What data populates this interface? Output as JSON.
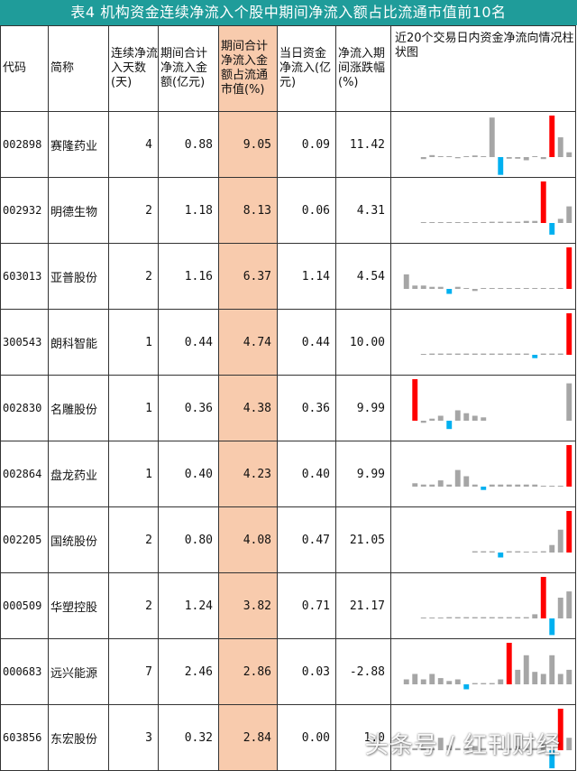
{
  "title": "表4 机构资金连续净流入个股中期间净流入额占比流通市值前10名",
  "headers": {
    "code": "代码",
    "name": "简称",
    "days": "连续净流入天数(天)",
    "amount": "期间合计净流入金额(亿元)",
    "ratio": "期间合计净流入金额占流通市值(%)",
    "today": "当日资金净流入(亿元)",
    "change": "净流入期间涨跌幅(%)",
    "chart": "近20个交易日内资金净流向情况柱状图"
  },
  "rows": [
    {
      "code": "002898",
      "name": "赛隆药业",
      "days": "4",
      "amount": "0.88",
      "ratio": "9.05",
      "today": "0.09",
      "change": "11.42",
      "bars": [
        0,
        0,
        -0.05,
        0.05,
        0,
        0,
        -0.03,
        0,
        0.04,
        0,
        1,
        -0.45,
        -0.04,
        -0.04,
        -0.08,
        0,
        -0.05,
        1.05,
        0.5,
        0.12
      ]
    },
    {
      "code": "002932",
      "name": "明德生物",
      "days": "2",
      "amount": "1.18",
      "ratio": "8.13",
      "today": "0.06",
      "change": "4.31",
      "bars": [
        0,
        0,
        0,
        0,
        0,
        0.02,
        0.02,
        0.02,
        0.02,
        0.02,
        0.03,
        0.03,
        0.03,
        0.03,
        0.05,
        0.05,
        1,
        -0.28,
        0.1,
        0.4
      ]
    },
    {
      "code": "603013",
      "name": "亚普股份",
      "days": "2",
      "amount": "1.16",
      "ratio": "6.37",
      "today": "1.14",
      "change": "4.54",
      "bars": [
        0.35,
        0.08,
        0.08,
        0.05,
        0.05,
        -0.12,
        0.05,
        0,
        -0.05,
        0,
        0.02,
        0,
        0,
        0,
        0,
        0,
        0,
        0.02,
        0,
        1
      ]
    },
    {
      "code": "300543",
      "name": "朗科智能",
      "days": "1",
      "amount": "0.44",
      "ratio": "4.74",
      "today": "0.44",
      "change": "10.00",
      "bars": [
        0,
        0,
        0,
        0.03,
        0.03,
        0.03,
        0.03,
        0.03,
        0.03,
        0.03,
        0.03,
        0.03,
        0.03,
        0.03,
        0.03,
        -0.08,
        0.03,
        0.03,
        0.03,
        1
      ]
    },
    {
      "code": "002830",
      "name": "名雕股份",
      "days": "1",
      "amount": "0.36",
      "ratio": "4.38",
      "today": "0.36",
      "change": "9.99",
      "bars": [
        0,
        1,
        -0.05,
        0.05,
        0.12,
        -0.2,
        0.25,
        0.18,
        0.12,
        0.08,
        0,
        0,
        0,
        0,
        0,
        0,
        0,
        0,
        0,
        0.9
      ]
    },
    {
      "code": "002864",
      "name": "盘龙药业",
      "days": "1",
      "amount": "0.40",
      "ratio": "4.23",
      "today": "0.40",
      "change": "9.99",
      "bars": [
        0,
        0.08,
        0.05,
        0.05,
        0.15,
        0.05,
        0.4,
        0.25,
        0.05,
        -0.08,
        0.05,
        0.05,
        0.05,
        0.05,
        0.05,
        0.05,
        0,
        0,
        0,
        1
      ]
    },
    {
      "code": "002205",
      "name": "国统股份",
      "days": "2",
      "amount": "0.80",
      "ratio": "4.08",
      "today": "0.47",
      "change": "21.05",
      "bars": [
        0,
        0,
        0,
        0,
        0,
        0,
        0,
        0,
        0.03,
        0.03,
        0.03,
        -0.12,
        0.03,
        0.03,
        0,
        0,
        0.03,
        0.18,
        0.55,
        1
      ]
    },
    {
      "code": "000509",
      "name": "华塑控股",
      "days": "2",
      "amount": "1.24",
      "ratio": "3.82",
      "today": "0.71",
      "change": "21.17",
      "bars": [
        0,
        0,
        0,
        0,
        0,
        0.03,
        0.03,
        0.03,
        0.03,
        0.03,
        0.03,
        0.03,
        0.03,
        0.03,
        0.03,
        0.1,
        1,
        -0.4,
        0.5,
        0.65
      ]
    },
    {
      "code": "000683",
      "name": "远兴能源",
      "days": "7",
      "amount": "2.46",
      "ratio": "2.86",
      "today": "0.03",
      "change": "-2.88",
      "bars": [
        0.12,
        0.25,
        0.12,
        0.25,
        0.15,
        0.08,
        0.12,
        -0.12,
        0.03,
        0.03,
        0.03,
        0.12,
        1,
        0.35,
        0.7,
        0.3,
        0.25,
        0.7,
        0.25,
        0.35
      ]
    },
    {
      "code": "603856",
      "name": "东宏股份",
      "days": "3",
      "amount": "0.32",
      "ratio": "2.84",
      "today": "0.00",
      "change": "1.0",
      "bars": [
        0,
        0.05,
        0.05,
        0.05,
        0.3,
        0.12,
        0.05,
        0.05,
        0.1,
        0.05,
        0.05,
        0.05,
        0.05,
        0.1,
        0.05,
        0.05,
        0.15,
        -0.55,
        1,
        0.3
      ]
    }
  ],
  "colors": {
    "title_bg": "#1f9c9a",
    "highlight": "#f8cbad",
    "bar_gray": "#a6a6a6",
    "bar_red": "#ff0000",
    "bar_blue": "#00b0f0"
  },
  "watermark": "头条号 / 红刊财经"
}
